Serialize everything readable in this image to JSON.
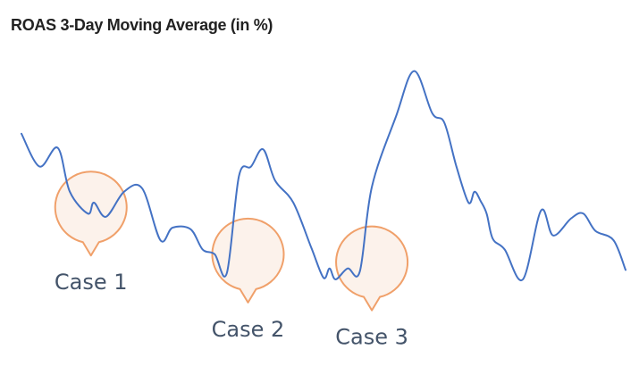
{
  "chart_data": {
    "type": "line",
    "title": "ROAS 3-Day Moving Average (in %)",
    "xlabel": "",
    "ylabel": "",
    "axes_visible": false,
    "grid": false,
    "legend": "none",
    "x": [
      0,
      3,
      6,
      8,
      11,
      12,
      14,
      17,
      20,
      23,
      25,
      28,
      30,
      32,
      34,
      36,
      38,
      40,
      42,
      45,
      48,
      50,
      51,
      52,
      54,
      56,
      58,
      62,
      65,
      68,
      70,
      72,
      74,
      75,
      76,
      77,
      78,
      80,
      83,
      86,
      88,
      91,
      93,
      95,
      98,
      100
    ],
    "series": [
      {
        "values": [
          85,
          64,
          76,
          48,
          34,
          41,
          32,
          48,
          50,
          17,
          25,
          24,
          11,
          8,
          -4,
          58,
          64,
          75,
          55,
          41,
          12,
          -7,
          -1,
          -8,
          -1,
          -3,
          51,
          96,
          125,
          98,
          92,
          64,
          41,
          48,
          42,
          34,
          18,
          11,
          -8,
          36,
          20,
          31,
          34,
          23,
          17,
          -2
        ]
      }
    ],
    "ylim": [
      -12,
      135
    ],
    "line_color": "#4472c4",
    "annotations": [
      {
        "label": "Case 1",
        "x": 11.5,
        "y": 38,
        "color": "#ed7d31"
      },
      {
        "label": "Case 2",
        "x": 37.5,
        "y": 8,
        "color": "#ed7d31"
      },
      {
        "label": "Case 3",
        "x": 58,
        "y": 3,
        "color": "#ed7d31"
      }
    ]
  },
  "colors": {
    "callout_stroke": "#f0a06a",
    "callout_fill": "#fcf0e8",
    "label_text": "#44546a"
  }
}
